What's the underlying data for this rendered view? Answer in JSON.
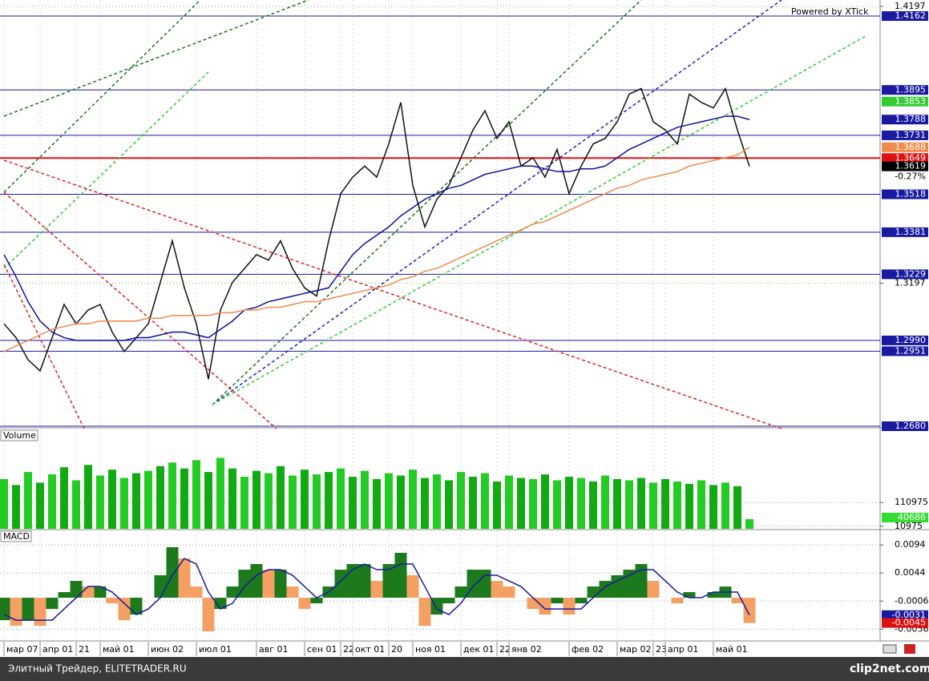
{
  "watermark": "Powered by XTick",
  "footer": {
    "text": "Элитный Трейдер, ELITETRADER.RU",
    "brand": "clip2net.com"
  },
  "chart_data": [
    {
      "type": "line",
      "categories": [
        "мар 07",
        null,
        null,
        "апр 01",
        null,
        null,
        "21",
        null,
        "май 01",
        null,
        null,
        null,
        "июн 02",
        null,
        null,
        null,
        "июл 01",
        null,
        null,
        null,
        null,
        "авг 01",
        null,
        null,
        null,
        "сен 01",
        null,
        null,
        "22",
        "окт 01",
        null,
        null,
        "20",
        null,
        "ноя 01",
        null,
        null,
        null,
        "дек 01",
        null,
        null,
        "22",
        "янв 02",
        null,
        null,
        null,
        null,
        "фев 02",
        null,
        null,
        null,
        "мар 02",
        null,
        null,
        "23",
        "апр 01",
        null,
        null,
        null,
        "май 01",
        null,
        null,
        null
      ],
      "series": [
        {
          "color": "#111111",
          "badge_color": "#000000",
          "values": [
            1.305,
            1.3,
            1.292,
            1.288,
            1.3,
            1.312,
            1.305,
            1.31,
            1.312,
            1.302,
            1.295,
            1.3,
            1.305,
            1.32,
            1.335,
            1.318,
            1.305,
            1.285,
            1.31,
            1.32,
            1.325,
            1.33,
            1.328,
            1.335,
            1.325,
            1.318,
            1.315,
            1.335,
            1.352,
            1.358,
            1.362,
            1.358,
            1.37,
            1.385,
            1.355,
            1.34,
            1.35,
            1.355,
            1.365,
            1.375,
            1.382,
            1.372,
            1.378,
            1.362,
            1.365,
            1.358,
            1.368,
            1.352,
            1.362,
            1.37,
            1.372,
            1.378,
            1.388,
            1.39,
            1.378,
            1.375,
            1.37,
            1.388,
            1.385,
            1.383,
            1.39,
            1.375,
            1.3619
          ]
        },
        {
          "color": "#1010a0",
          "badge_color": "#1a1aa0",
          "values": [
            1.33,
            1.322,
            1.313,
            1.306,
            1.302,
            1.3,
            1.299,
            1.299,
            1.299,
            1.299,
            1.299,
            1.3,
            1.3,
            1.301,
            1.302,
            1.302,
            1.301,
            1.3,
            1.303,
            1.306,
            1.31,
            1.311,
            1.313,
            1.314,
            1.315,
            1.316,
            1.317,
            1.318,
            1.324,
            1.33,
            1.334,
            1.337,
            1.34,
            1.344,
            1.347,
            1.35,
            1.352,
            1.354,
            1.355,
            1.357,
            1.359,
            1.36,
            1.361,
            1.362,
            1.362,
            1.361,
            1.36,
            1.36,
            1.361,
            1.361,
            1.362,
            1.365,
            1.368,
            1.37,
            1.372,
            1.374,
            1.376,
            1.377,
            1.378,
            1.379,
            1.38,
            1.38,
            1.3788
          ]
        },
        {
          "color": "#f08a4b",
          "badge_color": "#f08a4b",
          "values": [
            1.295,
            1.297,
            1.299,
            1.301,
            1.303,
            1.304,
            1.305,
            1.305,
            1.306,
            1.306,
            1.306,
            1.306,
            1.307,
            1.307,
            1.308,
            1.308,
            1.308,
            1.308,
            1.309,
            1.309,
            1.31,
            1.31,
            1.311,
            1.311,
            1.312,
            1.313,
            1.313,
            1.314,
            1.315,
            1.316,
            1.317,
            1.318,
            1.319,
            1.321,
            1.322,
            1.324,
            1.325,
            1.327,
            1.329,
            1.331,
            1.333,
            1.335,
            1.337,
            1.339,
            1.341,
            1.342,
            1.344,
            1.346,
            1.348,
            1.35,
            1.352,
            1.354,
            1.355,
            1.357,
            1.358,
            1.359,
            1.36,
            1.362,
            1.363,
            1.364,
            1.365,
            1.366,
            1.3688
          ]
        }
      ],
      "ylim": [
        1.268,
        1.422
      ],
      "yticks": [
        1.4197,
        1.3197
      ],
      "grid": true,
      "levels": [
        {
          "value": 1.4162,
          "color": "#1a1aa0",
          "line": true
        },
        {
          "value": 1.3895,
          "color": "#1a1aa0",
          "line": true
        },
        {
          "value": 1.3853,
          "color": "#33cc33",
          "line": false
        },
        {
          "value": 1.3731,
          "color": "#1a1aa0",
          "line": true
        },
        {
          "value": 1.3649,
          "color": "#dd1111",
          "line": true
        },
        {
          "value": 1.3518,
          "color": "#1a1aa0",
          "line": true
        },
        {
          "value": 1.3381,
          "color": "#1a1aa0",
          "line": true
        },
        {
          "value": 1.3229,
          "color": "#1a1aa0",
          "line": true
        },
        {
          "value": {
            "value": 1.299,
            "label": "1.2990"
          },
          "color": "#1a1aa0",
          "line": true
        },
        {
          "value": 1.2951,
          "color": "#1a1aa0",
          "line": true
        },
        {
          "value": {
            "value": 1.268,
            "label": "1.2680"
          },
          "color": "#1a1aa0",
          "line": true
        }
      ],
      "change_label": "-0.27%"
    },
    {
      "type": "bar",
      "title": "Volume",
      "color": "#22cc22",
      "badge_color": "#33dd33",
      "values": [
        210000,
        185000,
        240000,
        195000,
        230000,
        260000,
        205000,
        270000,
        225000,
        250000,
        215000,
        235000,
        245000,
        265000,
        280000,
        255000,
        290000,
        240000,
        300000,
        255000,
        220000,
        245000,
        235000,
        265000,
        225000,
        250000,
        230000,
        240000,
        255000,
        220000,
        245000,
        210000,
        235000,
        225000,
        250000,
        215000,
        230000,
        205000,
        240000,
        220000,
        235000,
        200000,
        225000,
        215000,
        210000,
        230000,
        205000,
        220000,
        215000,
        200000,
        225000,
        210000,
        205000,
        215000,
        195000,
        210000,
        200000,
        190000,
        205000,
        185000,
        195000,
        180000,
        40686
      ],
      "ylim": [
        0,
        420000
      ],
      "yticks": [
        110975,
        10975
      ]
    },
    {
      "type": "macd",
      "title": "MACD",
      "histogram": {
        "up_color": "#1c7a1c",
        "down_color": "#f4a064",
        "badge_color": "#dd1111",
        "values": [
          -0.004,
          -0.005,
          -0.004,
          -0.005,
          -0.002,
          0.001,
          0.003,
          0.002,
          0.002,
          -0.001,
          -0.004,
          -0.003,
          0.0,
          0.004,
          0.009,
          0.007,
          0.002,
          -0.006,
          -0.002,
          0.002,
          0.005,
          0.006,
          0.005,
          0.005,
          0.002,
          -0.002,
          -0.001,
          0.002,
          0.005,
          0.006,
          0.006,
          0.003,
          0.006,
          0.008,
          0.004,
          -0.005,
          -0.003,
          -0.001,
          0.002,
          0.005,
          0.005,
          0.003,
          0.002,
          0.0,
          -0.002,
          -0.003,
          -0.001,
          -0.003,
          -0.001,
          0.002,
          0.003,
          0.004,
          0.005,
          0.006,
          0.003,
          0.0,
          -0.001,
          0.001,
          0.0,
          0.001,
          0.002,
          -0.001,
          -0.0045
        ]
      },
      "signal": {
        "color": "#1a1aa0",
        "badge_color": "#1a1aa0",
        "values": [
          -0.003,
          -0.004,
          -0.004,
          -0.004,
          -0.004,
          -0.002,
          0.0,
          0.002,
          0.002,
          0.001,
          -0.001,
          -0.003,
          -0.002,
          0.0,
          0.004,
          0.007,
          0.006,
          0.001,
          -0.002,
          -0.001,
          0.002,
          0.004,
          0.005,
          0.005,
          0.004,
          0.002,
          0.0,
          0.001,
          0.003,
          0.005,
          0.006,
          0.005,
          0.005,
          0.006,
          0.006,
          0.002,
          -0.002,
          -0.003,
          -0.001,
          0.002,
          0.004,
          0.004,
          0.003,
          0.002,
          0.0,
          -0.002,
          -0.002,
          -0.002,
          -0.002,
          0.0,
          0.002,
          0.003,
          0.004,
          0.005,
          0.005,
          0.003,
          0.001,
          0.0,
          0.0,
          0.001,
          0.001,
          0.001,
          -0.0031
        ]
      },
      "ylim": [
        -0.0077,
        0.012
      ],
      "yticks": [
        0.0094,
        0.0044,
        -0.0006,
        -0.0056
      ]
    }
  ]
}
